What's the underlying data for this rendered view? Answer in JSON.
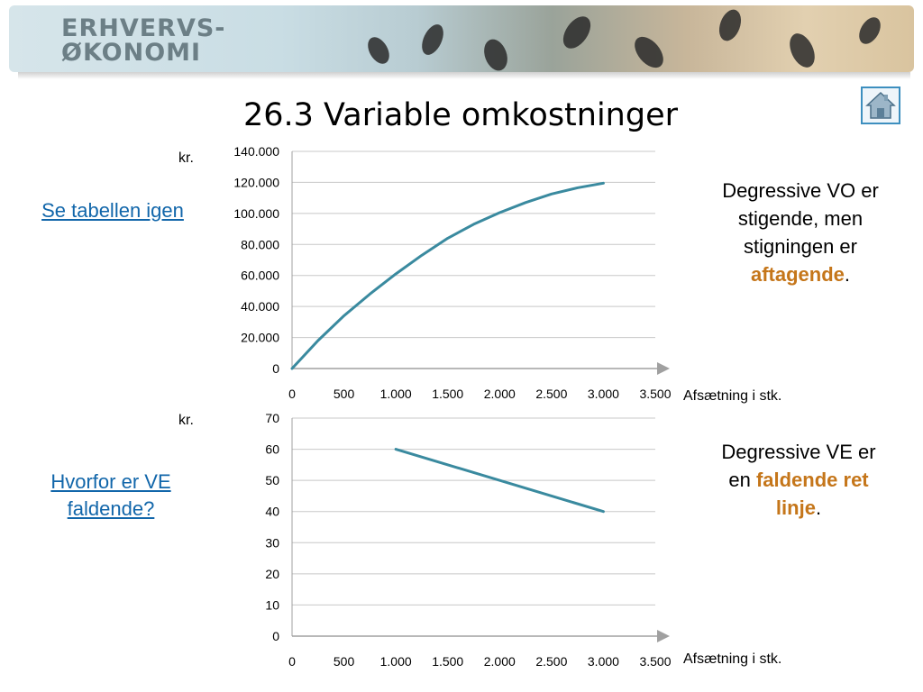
{
  "header": {
    "logo_line1": "ERHVERVS-",
    "logo_line2": "ØKONOMI"
  },
  "title": "26.3 Variable omkostninger",
  "links": {
    "table_link": "Se tabellen igen",
    "why_link": "Hvorfor er VE faldende?"
  },
  "notes": {
    "vo": {
      "text_before": "Degressive VO er stigende, men stigningen er ",
      "highlight": "aftagende",
      "text_after": "."
    },
    "ve": {
      "text_before": "Degressive VE er en ",
      "highlight": "faldende ret linje",
      "text_after": "."
    }
  },
  "colors": {
    "line": "#3a8a9f",
    "highlight": "#c5761a",
    "link": "#1166aa"
  },
  "icons": {
    "home": "home-icon"
  },
  "chart_data": [
    {
      "type": "line",
      "title": "",
      "ylabel": "kr.",
      "xlabel": "Afsætning i stk.",
      "xlim": [
        0,
        3500
      ],
      "ylim": [
        0,
        140000
      ],
      "x_ticks": [
        "0",
        "500",
        "1.000",
        "1.500",
        "2.000",
        "2.500",
        "3.000",
        "3.500"
      ],
      "y_ticks": [
        "0",
        "20.000",
        "40.000",
        "60.000",
        "80.000",
        "100.000",
        "120.000",
        "140.000"
      ],
      "grid": true,
      "series": [
        {
          "x": [
            0,
            250,
            500,
            750,
            1000,
            1250,
            1500,
            1750,
            2000,
            2250,
            2500,
            2750,
            3000
          ],
          "y": [
            0,
            18000,
            34000,
            48000,
            61000,
            73000,
            84000,
            93000,
            100500,
            107000,
            112500,
            116500,
            119500
          ]
        }
      ]
    },
    {
      "type": "line",
      "title": "",
      "ylabel": "kr.",
      "xlabel": "Afsætning i stk.",
      "xlim": [
        0,
        3500
      ],
      "ylim": [
        0,
        70
      ],
      "x_ticks": [
        "0",
        "500",
        "1.000",
        "1.500",
        "2.000",
        "2.500",
        "3.000",
        "3.500"
      ],
      "y_ticks": [
        "0",
        "10",
        "20",
        "30",
        "40",
        "50",
        "60",
        "70"
      ],
      "grid": true,
      "series": [
        {
          "x": [
            1000,
            3000
          ],
          "y": [
            60,
            40
          ]
        }
      ]
    }
  ]
}
